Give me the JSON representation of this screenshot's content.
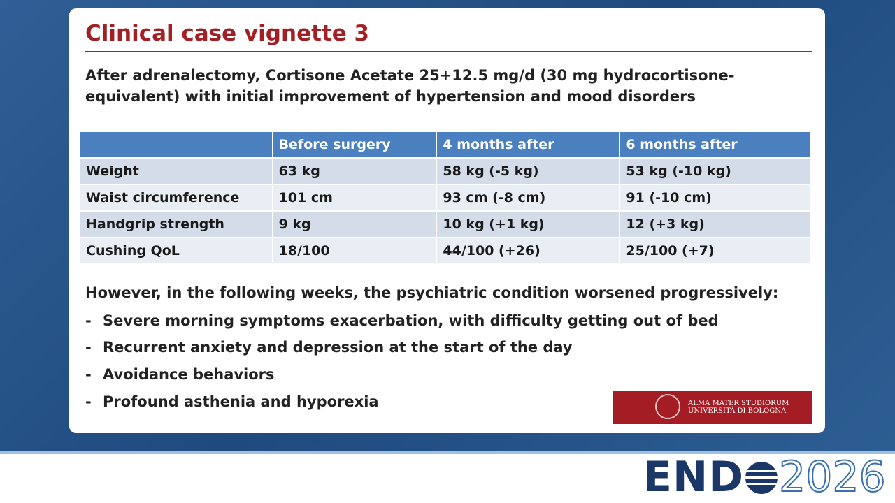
{
  "slide": {
    "title": "Clinical case vignette 3",
    "intro": "After adrenalectomy, Cortisone Acetate 25+12.5 mg/d (30 mg hydrocortisone-equivalent) with initial improvement of hypertension and mood disorders",
    "table": {
      "header": [
        "",
        "Before surgery",
        "4 months after",
        "6 months after"
      ],
      "rows": [
        [
          "Weight",
          "63 kg",
          "58 kg (-5 kg)",
          "53 kg (-10 kg)"
        ],
        [
          "Waist circumference",
          "101 cm",
          "93 cm (-8 cm)",
          "91 (-10 cm)"
        ],
        [
          "Handgrip strength",
          "9 kg",
          "10 kg (+1 kg)",
          "12 (+3 kg)"
        ],
        [
          "Cushing QoL",
          "18/100",
          "44/100 (+26)",
          "25/100 (+7)"
        ]
      ]
    },
    "followup": "However, in the following weeks, the psychiatric condition worsened progressively:",
    "bullet_marker": "-",
    "bullets": [
      "Severe morning symptoms exacerbation, with difficulty getting out of bed",
      "Recurrent anxiety and depression at the start of the day",
      "Avoidance behaviors",
      "Profound asthenia and hyporexia"
    ],
    "logo": [
      "ALMA MATER STUDIORUM",
      "UNIVERSITÀ DI BOLOGNA"
    ]
  },
  "footer": {
    "brand": "END",
    "year": "2026"
  }
}
